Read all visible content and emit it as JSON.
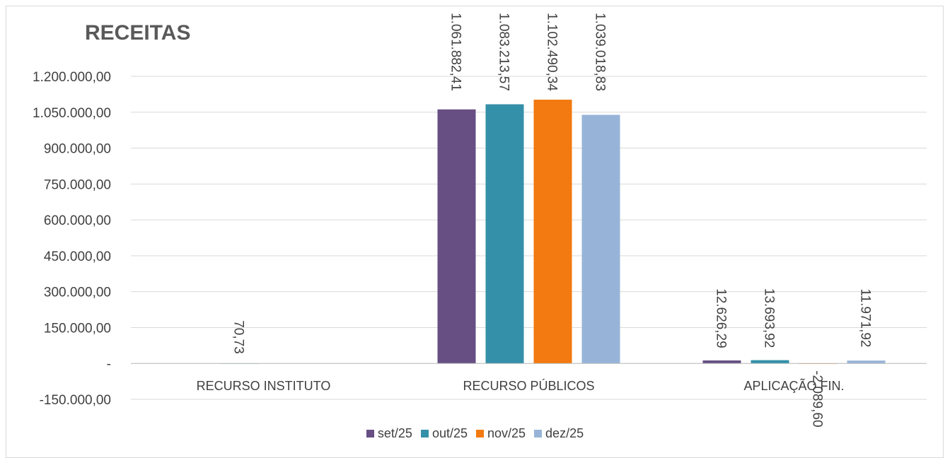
{
  "chart_data": {
    "type": "bar",
    "title": "RECEITAS",
    "categories": [
      "RECURSO INSTITUTO",
      "RECURSO PÚBLICOS",
      "APLICAÇÃO FIN."
    ],
    "series": [
      {
        "name": "set/25",
        "color": "#674f84",
        "values": [
          null,
          1061882.41,
          12626.29
        ],
        "labels": [
          "",
          "1.061.882,41",
          "12.626,29"
        ]
      },
      {
        "name": "out/25",
        "color": "#3490a8",
        "values": [
          70.73,
          1083213.57,
          13693.92
        ],
        "labels": [
          "70,73",
          "1.083.213,57",
          "13.693,92"
        ]
      },
      {
        "name": "nov/25",
        "color": "#f27a10",
        "values": [
          null,
          1102490.34,
          -2089.6
        ],
        "labels": [
          "",
          "1.102.490,34",
          "-2.089,60"
        ]
      },
      {
        "name": "dez/25",
        "color": "#97b4d8",
        "values": [
          null,
          1039018.83,
          11971.92
        ],
        "labels": [
          "",
          "1.039.018,83",
          "11.971,92"
        ]
      }
    ],
    "ylim": [
      -150000,
      1200000
    ],
    "yticks": [
      {
        "value": 1200000,
        "label": "1.200.000,00"
      },
      {
        "value": 1050000,
        "label": "1.050.000,00"
      },
      {
        "value": 900000,
        "label": "900.000,00"
      },
      {
        "value": 750000,
        "label": "750.000,00"
      },
      {
        "value": 600000,
        "label": "600.000,00"
      },
      {
        "value": 450000,
        "label": "450.000,00"
      },
      {
        "value": 300000,
        "label": "300.000,00"
      },
      {
        "value": 150000,
        "label": "150.000,00"
      },
      {
        "value": 0,
        "label": "-"
      },
      {
        "value": -150000,
        "label": "-150.000,00"
      }
    ],
    "grid": true,
    "legend_position": "bottom"
  }
}
